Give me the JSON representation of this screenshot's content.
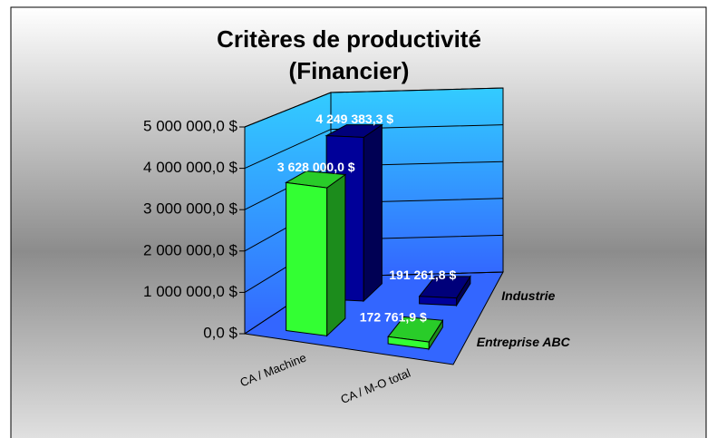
{
  "chart_data": {
    "type": "bar3d",
    "title": "Critères de productivité",
    "subtitle": "(Financier)",
    "categories": [
      "CA / Machine",
      "CA / M-O total"
    ],
    "series": [
      {
        "name": "Entreprise ABC",
        "color": "#33ff33",
        "values": [
          3628000,
          172761.9
        ],
        "value_labels": [
          "3 628 000,0 $",
          "172 761,9 $"
        ]
      },
      {
        "name": "Industrie",
        "color": "#000099",
        "values": [
          4249383.3,
          191261.8
        ],
        "value_labels": [
          "4 249 383,3 $",
          "191 261,8 $"
        ]
      }
    ],
    "ylim": [
      0,
      5000000
    ],
    "yticks": [
      {
        "value": 0,
        "label": "0,0 $"
      },
      {
        "value": 1000000,
        "label": "1 000 000,0 $"
      },
      {
        "value": 2000000,
        "label": "2 000 000,0 $"
      },
      {
        "value": 3000000,
        "label": "3 000 000,0 $"
      },
      {
        "value": 4000000,
        "label": "4 000 000,0 $"
      },
      {
        "value": 5000000,
        "label": "5 000 000,0 $"
      }
    ],
    "grid": true
  }
}
